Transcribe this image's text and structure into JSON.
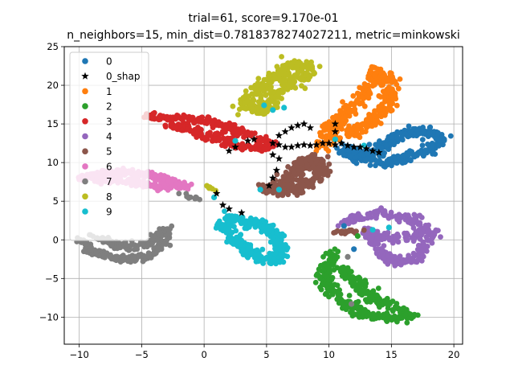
{
  "chart_data": {
    "type": "scatter",
    "title_line1": "trial=61, score=9.170e-01",
    "title_line2": "n_neighbors=15, min_dist=0.7818378274027211, metric=minkowski",
    "xlim": [
      -11.2,
      20.7
    ],
    "ylim": [
      -13.5,
      25
    ],
    "xticks": [
      -10,
      -5,
      0,
      5,
      10,
      15,
      20
    ],
    "yticks": [
      -10,
      -5,
      0,
      5,
      10,
      15,
      20,
      25
    ],
    "xtick_labels": [
      "−10",
      "−5",
      "0",
      "5",
      "10",
      "15",
      "20"
    ],
    "ytick_labels": [
      "−10",
      "−5",
      "0",
      "5",
      "10",
      "15",
      "20",
      "25"
    ],
    "grid": true,
    "legend_position": "top-left",
    "legend": [
      {
        "label": "0",
        "color": "#1f77b4",
        "marker": "circle"
      },
      {
        "label": "0_shap",
        "color": "#000000",
        "marker": "star"
      },
      {
        "label": "1",
        "color": "#ff7f0e",
        "marker": "circle"
      },
      {
        "label": "2",
        "color": "#2ca02c",
        "marker": "circle"
      },
      {
        "label": "3",
        "color": "#d62728",
        "marker": "circle"
      },
      {
        "label": "4",
        "color": "#9467bd",
        "marker": "circle"
      },
      {
        "label": "5",
        "color": "#8c564b",
        "marker": "circle"
      },
      {
        "label": "6",
        "color": "#e377c2",
        "marker": "circle"
      },
      {
        "label": "7",
        "color": "#7f7f7f",
        "marker": "circle"
      },
      {
        "label": "8",
        "color": "#bcbd22",
        "marker": "circle"
      },
      {
        "label": "9",
        "color": "#17becf",
        "marker": "circle"
      }
    ],
    "clusters": [
      {
        "label": "0",
        "color": "#1f77b4",
        "path": [
          [
            11,
            12
          ],
          [
            12.5,
            11.2
          ],
          [
            14,
            11.5
          ],
          [
            15,
            13
          ],
          [
            16.5,
            14
          ],
          [
            18,
            14
          ],
          [
            19,
            13
          ],
          [
            18,
            11.5
          ],
          [
            16,
            10.5
          ],
          [
            14.5,
            10
          ],
          [
            13,
            10.5
          ],
          [
            11.5,
            11
          ]
        ],
        "spread": 0.7,
        "count": 380
      },
      {
        "label": "1",
        "color": "#ff7f0e",
        "path": [
          [
            9.5,
            12
          ],
          [
            10,
            14
          ],
          [
            11,
            16
          ],
          [
            12.5,
            18
          ],
          [
            13.5,
            20
          ],
          [
            14,
            22
          ],
          [
            14.5,
            21
          ],
          [
            15,
            19
          ],
          [
            14.5,
            17
          ],
          [
            14,
            16
          ],
          [
            13,
            15
          ],
          [
            12,
            14
          ],
          [
            11,
            13
          ]
        ],
        "spread": 0.8,
        "count": 380
      },
      {
        "label": "2",
        "color": "#2ca02c",
        "path": [
          [
            10.5,
            -1.5
          ],
          [
            10,
            -3
          ],
          [
            9.5,
            -5
          ],
          [
            10.5,
            -7
          ],
          [
            11.5,
            -8.5
          ],
          [
            13,
            -9.5
          ],
          [
            15,
            -10.2
          ],
          [
            16.5,
            -10
          ],
          [
            15,
            -8.5
          ],
          [
            13,
            -7
          ],
          [
            12,
            -5
          ],
          [
            11,
            -3.5
          ]
        ],
        "spread": 0.7,
        "count": 380
      },
      {
        "label": "3",
        "color": "#d62728",
        "path": [
          [
            -4.5,
            16
          ],
          [
            -3,
            15.8
          ],
          [
            -1.5,
            15.7
          ],
          [
            0,
            15.5
          ],
          [
            1.5,
            14.8
          ],
          [
            3,
            13.8
          ],
          [
            4.5,
            13
          ],
          [
            5.5,
            12.5
          ],
          [
            4.5,
            11.8
          ],
          [
            3,
            12
          ],
          [
            1.5,
            13
          ],
          [
            0,
            13.5
          ],
          [
            -1.5,
            14.5
          ],
          [
            -3,
            15
          ]
        ],
        "spread": 0.6,
        "count": 360
      },
      {
        "label": "4",
        "color": "#9467bd",
        "path": [
          [
            11,
            2
          ],
          [
            12.5,
            3
          ],
          [
            14,
            3.5
          ],
          [
            15.5,
            3
          ],
          [
            17,
            2.5
          ],
          [
            18,
            1.5
          ],
          [
            17,
            0.5
          ],
          [
            15.5,
            0
          ],
          [
            14,
            0.5
          ],
          [
            13,
            1
          ],
          [
            14.5,
            -2
          ],
          [
            15.5,
            -3
          ],
          [
            17,
            -2.5
          ],
          [
            17.5,
            -1
          ],
          [
            18.5,
            1
          ]
        ],
        "spread": 0.6,
        "count": 340
      },
      {
        "label": "5",
        "color": "#8c564b",
        "path": [
          [
            5,
            6.5
          ],
          [
            6.5,
            6.5
          ],
          [
            8,
            7
          ],
          [
            9,
            8
          ],
          [
            9.5,
            9.5
          ],
          [
            8.5,
            10.5
          ],
          [
            7.5,
            9.5
          ],
          [
            7,
            8
          ],
          [
            6,
            7
          ]
        ],
        "spread": 0.9,
        "count": 260
      },
      {
        "label": "5",
        "color": "#8c564b",
        "path": [
          [
            10,
            0.8
          ],
          [
            11,
            1
          ],
          [
            12,
            1.2
          ],
          [
            13,
            1.5
          ]
        ],
        "spread": 0.3,
        "count": 20
      },
      {
        "label": "6",
        "color": "#e377c2",
        "path": [
          [
            -10,
            8
          ],
          [
            -8.5,
            8.5
          ],
          [
            -7,
            8.8
          ],
          [
            -5.5,
            8.5
          ],
          [
            -4,
            8.2
          ],
          [
            -2.5,
            7.5
          ],
          [
            -1.5,
            7
          ],
          [
            -3,
            6.8
          ],
          [
            -5,
            7.2
          ],
          [
            -7,
            7.8
          ],
          [
            -8.5,
            7.8
          ]
        ],
        "spread": 0.5,
        "count": 340
      },
      {
        "label": "7",
        "color": "#7f7f7f",
        "path": [
          [
            -10,
            0
          ],
          [
            -9,
            -1.5
          ],
          [
            -7.5,
            -2.2
          ],
          [
            -6,
            -2.5
          ],
          [
            -4.5,
            -2
          ],
          [
            -3.5,
            -1
          ],
          [
            -3,
            0
          ],
          [
            -3,
            1.5
          ],
          [
            -4.5,
            -0.5
          ],
          [
            -6,
            -1
          ],
          [
            -7.5,
            -0.5
          ],
          [
            -9,
            0.5
          ]
        ],
        "spread": 0.5,
        "count": 300
      },
      {
        "label": "7",
        "color": "#7f7f7f",
        "path": [
          [
            -2,
            6
          ],
          [
            -1,
            5.5
          ],
          [
            0,
            5
          ]
        ],
        "spread": 0.3,
        "count": 12
      },
      {
        "label": "8",
        "color": "#bcbd22",
        "path": [
          [
            3,
            17
          ],
          [
            4,
            19
          ],
          [
            5.5,
            21
          ],
          [
            7,
            22.5
          ],
          [
            8.5,
            22.5
          ],
          [
            8,
            21
          ],
          [
            6.5,
            20
          ],
          [
            5.5,
            18.5
          ],
          [
            5,
            17
          ],
          [
            4,
            16.5
          ]
        ],
        "spread": 0.8,
        "count": 340
      },
      {
        "label": "8",
        "color": "#bcbd22",
        "path": [
          [
            0,
            7
          ],
          [
            1,
            6.5
          ]
        ],
        "spread": 0.3,
        "count": 8
      },
      {
        "label": "9",
        "color": "#17becf",
        "path": [
          [
            1.5,
            2
          ],
          [
            2.5,
            0
          ],
          [
            3.5,
            -1.5
          ],
          [
            5,
            -2.5
          ],
          [
            6,
            -2.5
          ],
          [
            6,
            -0.5
          ],
          [
            5.5,
            1
          ],
          [
            4.5,
            2
          ],
          [
            3,
            2.5
          ],
          [
            2,
            3
          ]
        ],
        "spread": 0.7,
        "count": 320
      }
    ],
    "shap_markers": [
      [
        5.5,
        12.5
      ],
      [
        6,
        12.3
      ],
      [
        6.5,
        12
      ],
      [
        7,
        12
      ],
      [
        7.5,
        12.2
      ],
      [
        8,
        12.3
      ],
      [
        8.5,
        12.2
      ],
      [
        9,
        12.3
      ],
      [
        9.5,
        12.5
      ],
      [
        10,
        12.5
      ],
      [
        10.5,
        12.3
      ],
      [
        11,
        12.5
      ],
      [
        11.5,
        12.2
      ],
      [
        12,
        12
      ],
      [
        12.5,
        12
      ],
      [
        13,
        11.8
      ],
      [
        13.5,
        11.5
      ],
      [
        14,
        11.3
      ],
      [
        6,
        13.5
      ],
      [
        6.5,
        14
      ],
      [
        7,
        14.5
      ],
      [
        7.5,
        14.8
      ],
      [
        8,
        15
      ],
      [
        8.5,
        14.5
      ],
      [
        5.5,
        11
      ],
      [
        6,
        10.5
      ],
      [
        5.8,
        9
      ],
      [
        5.5,
        8
      ],
      [
        5.2,
        7
      ],
      [
        4,
        13
      ],
      [
        3.5,
        12.8
      ],
      [
        2.5,
        12
      ],
      [
        2,
        11.5
      ],
      [
        1,
        6
      ],
      [
        1.5,
        4.5
      ],
      [
        2,
        4
      ],
      [
        3,
        3.5
      ],
      [
        10.5,
        15
      ],
      [
        10.5,
        14
      ]
    ],
    "stray_points": [
      [
        4.8,
        17.4,
        "#17becf"
      ],
      [
        5.5,
        16.8,
        "#17becf"
      ],
      [
        6.4,
        17.1,
        "#17becf"
      ],
      [
        4.5,
        6.5,
        "#17becf"
      ],
      [
        6,
        6.5,
        "#17becf"
      ],
      [
        0.8,
        5.5,
        "#17becf"
      ],
      [
        2.5,
        12.8,
        "#17becf"
      ],
      [
        10.5,
        13,
        "#17becf"
      ],
      [
        12.8,
        12.2,
        "#17becf"
      ],
      [
        13.5,
        1.3,
        "#17becf"
      ],
      [
        14.8,
        1.6,
        "#17becf"
      ],
      [
        11.5,
        -2.2,
        "#7f7f7f"
      ],
      [
        11.8,
        -8.3,
        "#7f7f7f"
      ],
      [
        12.3,
        0.5,
        "#2ca02c"
      ],
      [
        11.2,
        1.8,
        "#1f77b4"
      ],
      [
        12,
        -1.2,
        "#1f77b4"
      ]
    ]
  }
}
